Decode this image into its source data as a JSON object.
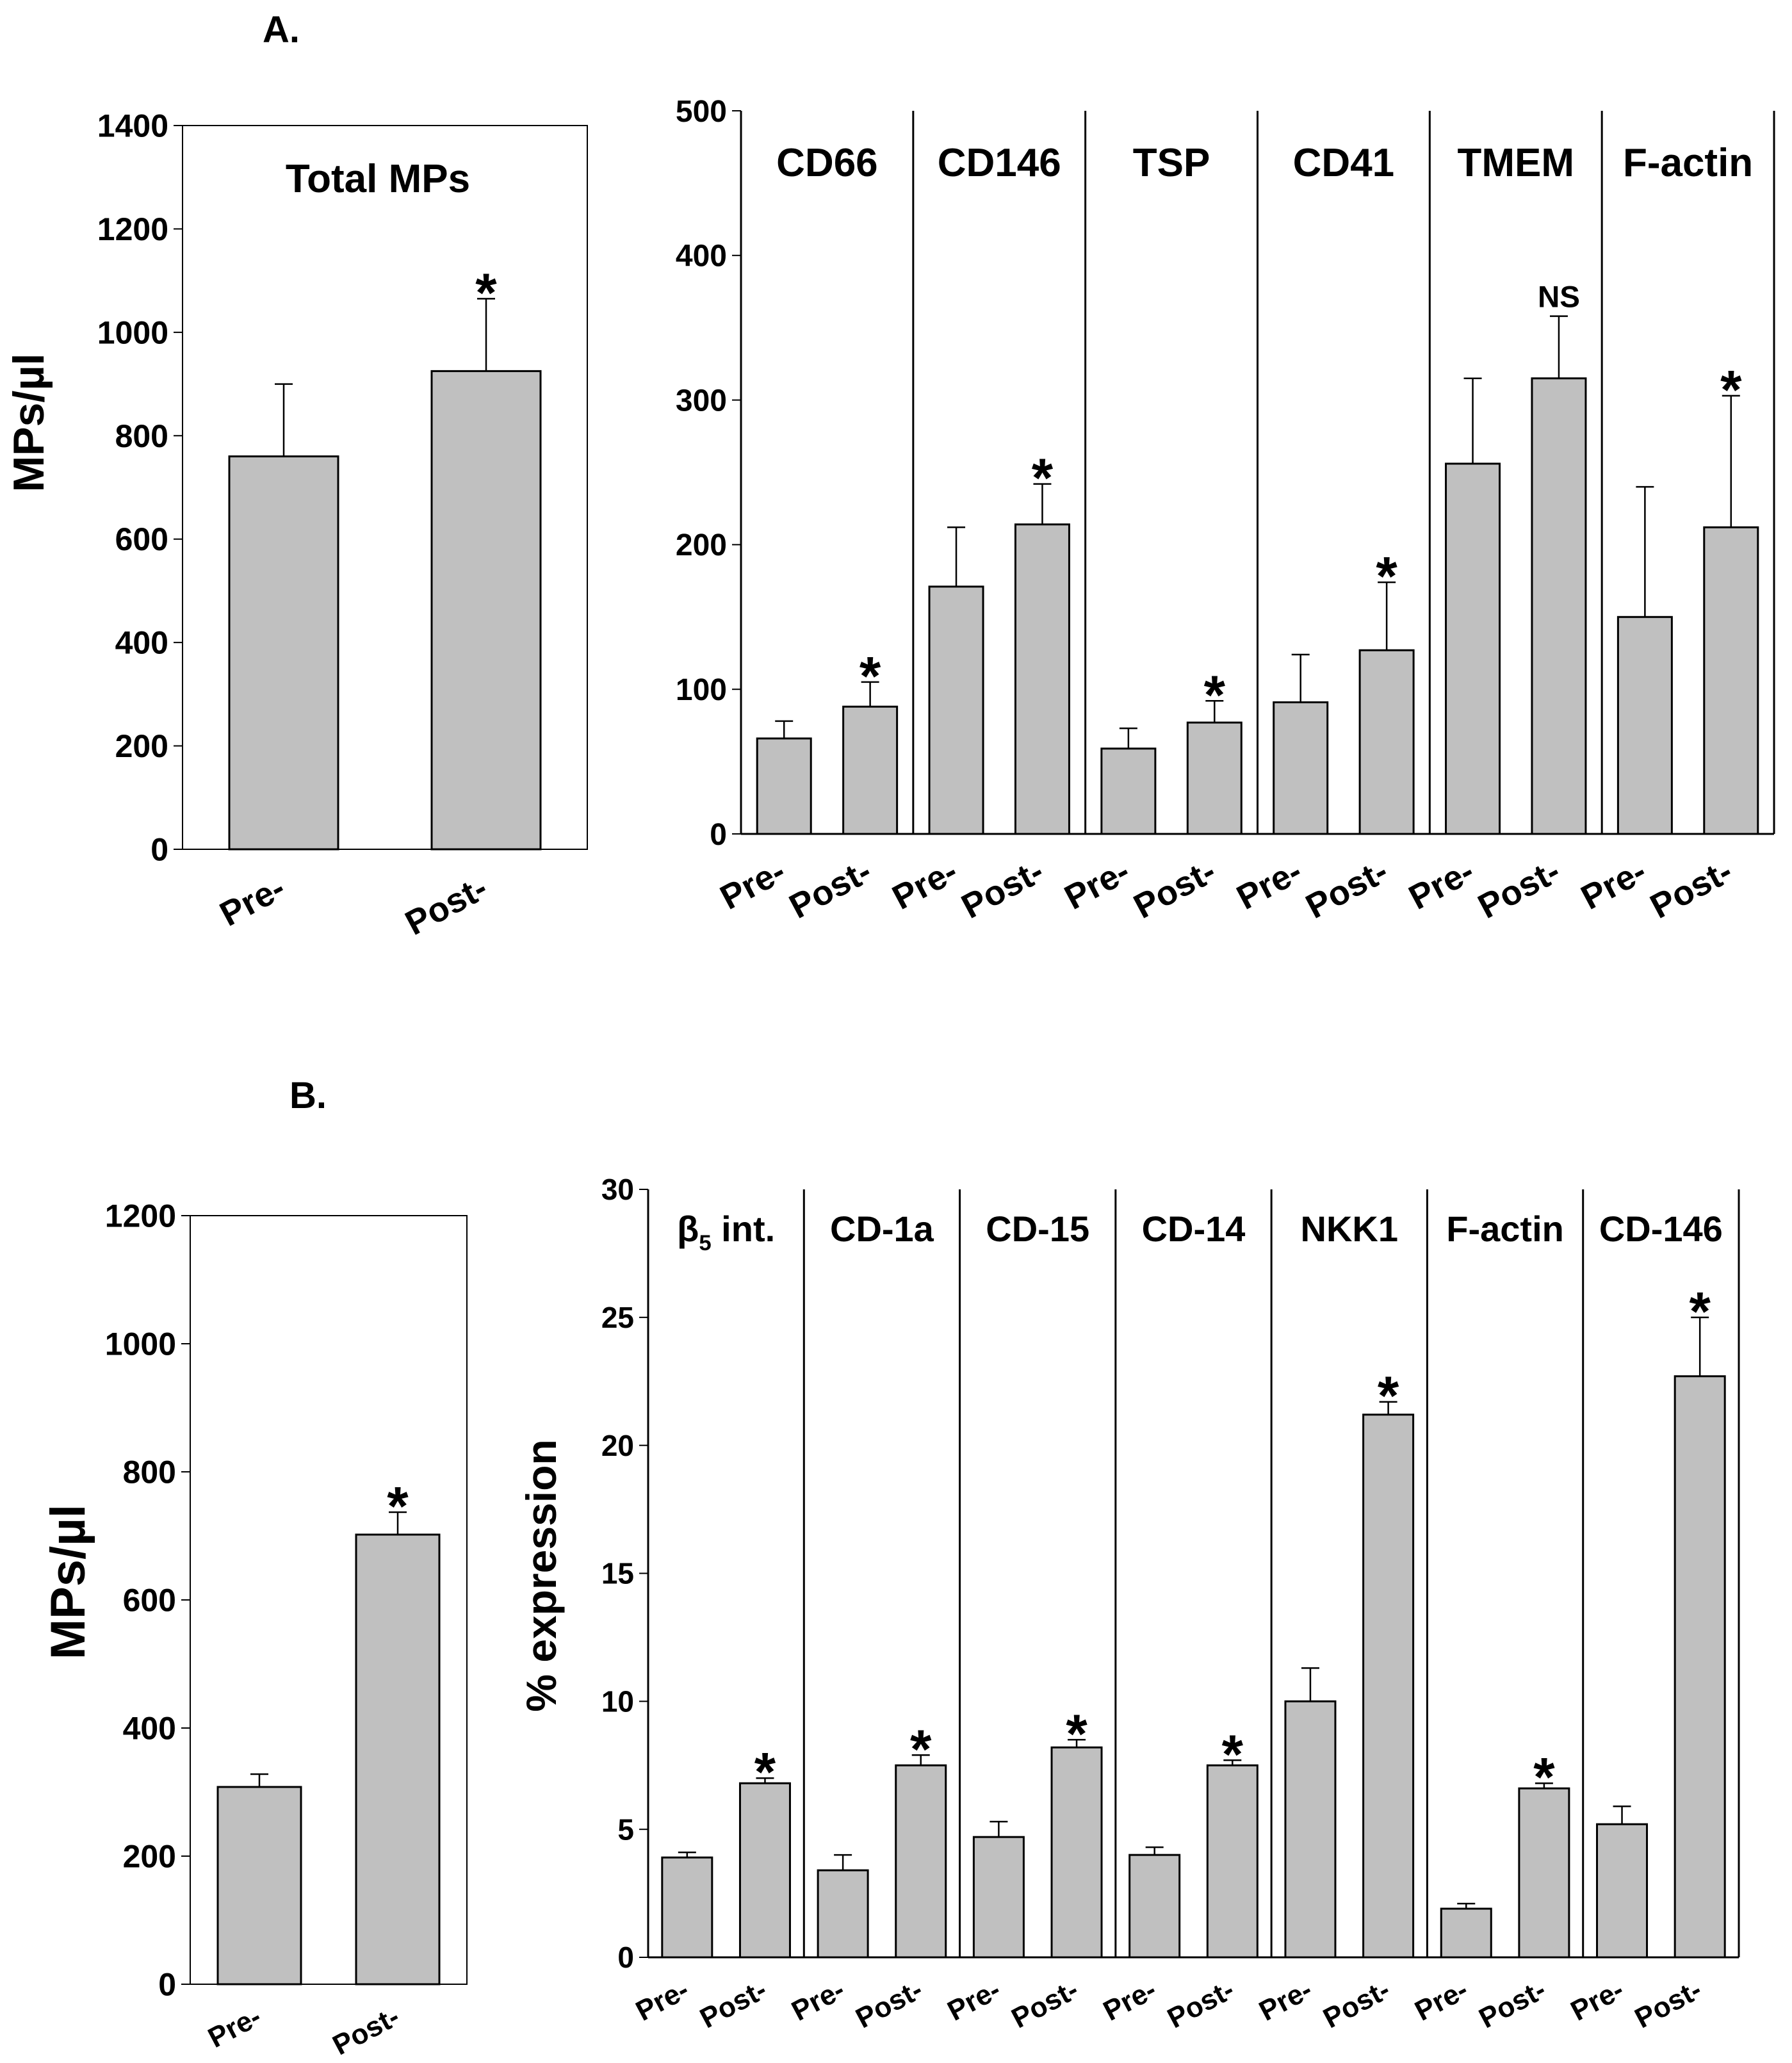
{
  "panels": [
    {
      "label": "A."
    },
    {
      "label": "B."
    }
  ],
  "chart_data": [
    {
      "id": "A-total",
      "type": "bar",
      "title": "Total MPs",
      "xlabel": "",
      "ylabel": "MPs/µl",
      "ylim": [
        0,
        1400
      ],
      "yticks": [
        0,
        200,
        400,
        600,
        800,
        1000,
        1200,
        1400
      ],
      "categories": [
        "Pre-",
        "Post-"
      ],
      "values": [
        760,
        925
      ],
      "errors": [
        140,
        140
      ],
      "annotations": [
        "",
        "*"
      ],
      "grid": false,
      "bar_color": "#c0c0c0"
    },
    {
      "id": "A-markers",
      "type": "bar",
      "xlabel": "",
      "ylabel": "",
      "ylim": [
        0,
        500
      ],
      "yticks": [
        0,
        100,
        200,
        300,
        400,
        500
      ],
      "grid": false,
      "bar_color": "#c0c0c0",
      "groups": [
        {
          "name": "CD66",
          "categories": [
            "Pre-",
            "Post-"
          ],
          "values": [
            66,
            88
          ],
          "errors": [
            12,
            17
          ],
          "annotations": [
            "",
            "*"
          ]
        },
        {
          "name": "CD146",
          "categories": [
            "Pre-",
            "Post-"
          ],
          "values": [
            171,
            214
          ],
          "errors": [
            41,
            28
          ],
          "annotations": [
            "",
            "*"
          ]
        },
        {
          "name": "TSP",
          "categories": [
            "Pre-",
            "Post-"
          ],
          "values": [
            59,
            77
          ],
          "errors": [
            14,
            15
          ],
          "annotations": [
            "",
            "*"
          ]
        },
        {
          "name": "CD41",
          "categories": [
            "Pre-",
            "Post-"
          ],
          "values": [
            91,
            127
          ],
          "errors": [
            33,
            47
          ],
          "annotations": [
            "",
            "*"
          ]
        },
        {
          "name": "TMEM",
          "categories": [
            "Pre-",
            "Post-"
          ],
          "values": [
            256,
            315
          ],
          "errors": [
            59,
            43
          ],
          "annotations": [
            "",
            "NS"
          ]
        },
        {
          "name": "F-actin",
          "categories": [
            "Pre-",
            "Post-"
          ],
          "values": [
            150,
            212
          ],
          "errors": [
            90,
            91
          ],
          "annotations": [
            "",
            "*"
          ]
        }
      ]
    },
    {
      "id": "B-total",
      "type": "bar",
      "xlabel": "",
      "ylabel": "MPs/µl",
      "ylim": [
        0,
        1200
      ],
      "yticks": [
        0,
        200,
        400,
        600,
        800,
        1000,
        1200
      ],
      "categories": [
        "Pre-",
        "Post-"
      ],
      "values": [
        308,
        702
      ],
      "errors": [
        20,
        35
      ],
      "annotations": [
        "",
        "*"
      ],
      "grid": false,
      "bar_color": "#c0c0c0"
    },
    {
      "id": "B-markers",
      "type": "bar",
      "xlabel": "",
      "ylabel": "% expression",
      "ylim": [
        0,
        30
      ],
      "yticks": [
        0,
        5,
        10,
        15,
        20,
        25,
        30
      ],
      "grid": false,
      "bar_color": "#c0c0c0",
      "groups": [
        {
          "name": "β5 int.",
          "name_main": "β",
          "name_sub": "5",
          "name_rest": " int.",
          "categories": [
            "Pre-",
            "Post-"
          ],
          "values": [
            3.9,
            6.8
          ],
          "errors": [
            0.2,
            0.2
          ],
          "annotations": [
            "",
            "*"
          ]
        },
        {
          "name": "CD-1a",
          "categories": [
            "Pre-",
            "Post-"
          ],
          "values": [
            3.4,
            7.5
          ],
          "errors": [
            0.6,
            0.4
          ],
          "annotations": [
            "",
            "*"
          ]
        },
        {
          "name": "CD-15",
          "categories": [
            "Pre-",
            "Post-"
          ],
          "values": [
            4.7,
            8.2
          ],
          "errors": [
            0.6,
            0.3
          ],
          "annotations": [
            "",
            "*"
          ]
        },
        {
          "name": "CD-14",
          "categories": [
            "Pre-",
            "Post-"
          ],
          "values": [
            4.0,
            7.5
          ],
          "errors": [
            0.3,
            0.2
          ],
          "annotations": [
            "",
            "*"
          ]
        },
        {
          "name": "NKK1",
          "categories": [
            "Pre-",
            "Post-"
          ],
          "values": [
            10.0,
            21.2
          ],
          "errors": [
            1.3,
            0.5
          ],
          "annotations": [
            "",
            "*"
          ]
        },
        {
          "name": "F-actin",
          "categories": [
            "Pre-",
            "Post-"
          ],
          "values": [
            1.9,
            6.6
          ],
          "errors": [
            0.2,
            0.2
          ],
          "annotations": [
            "",
            "*"
          ]
        },
        {
          "name": "CD-146",
          "categories": [
            "Pre-",
            "Post-"
          ],
          "values": [
            5.2,
            22.7
          ],
          "errors": [
            0.7,
            2.3
          ],
          "annotations": [
            "",
            "*"
          ]
        }
      ]
    }
  ]
}
